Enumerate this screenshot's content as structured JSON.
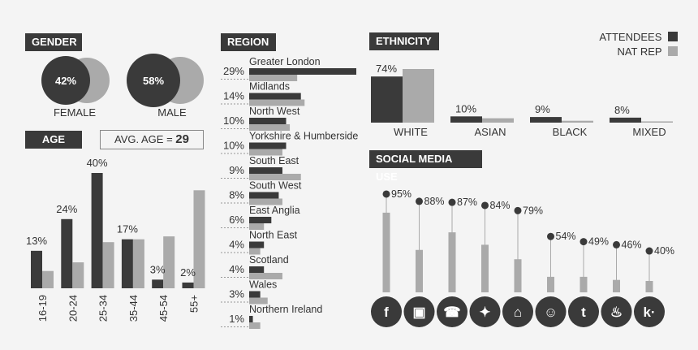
{
  "colors": {
    "attendees": "#3a3a3a",
    "natrep": "#aaaaaa",
    "background": "#f4f4f4"
  },
  "gender": {
    "title": "GENDER",
    "female": {
      "label": "FEMALE",
      "value": "42%"
    },
    "male": {
      "label": "MALE",
      "value": "58%"
    }
  },
  "age": {
    "title": "AGE",
    "avg_label": "AVG. AGE =",
    "avg_value": "29"
  },
  "region": {
    "title": "REGION"
  },
  "ethnicity": {
    "title": "ETHNICITY"
  },
  "social": {
    "title": "SOCIAL MEDIA USE"
  },
  "legend": {
    "attendees": "ATTENDEES",
    "natrep": "NAT REP"
  },
  "chart_data": [
    {
      "type": "bar",
      "id": "age",
      "categories": [
        "16-19",
        "20-24",
        "25-34",
        "35-44",
        "45-54",
        "55+"
      ],
      "labels": [
        "13%",
        "24%",
        "40%",
        "17%",
        "3%",
        "2%"
      ],
      "series": [
        {
          "name": "ATTENDEES",
          "values": [
            13,
            24,
            40,
            17,
            3,
            2
          ]
        },
        {
          "name": "NAT REP",
          "values": [
            6,
            9,
            16,
            17,
            18,
            34
          ]
        }
      ],
      "ylim": [
        0,
        40
      ]
    },
    {
      "type": "bar",
      "id": "region",
      "orientation": "horizontal",
      "categories": [
        "Greater London",
        "Midlands",
        "North West",
        "Yorkshire & Humberside",
        "South East",
        "South West",
        "East Anglia",
        "North East",
        "Scotland",
        "Wales",
        "Northern Ireland"
      ],
      "labels": [
        "29%",
        "14%",
        "10%",
        "10%",
        "9%",
        "8%",
        "6%",
        "4%",
        "4%",
        "3%",
        "1%"
      ],
      "series": [
        {
          "name": "ATTENDEES",
          "values": [
            29,
            14,
            10,
            10,
            9,
            8,
            6,
            4,
            4,
            3,
            1
          ]
        },
        {
          "name": "NAT REP",
          "values": [
            13,
            15,
            11,
            9,
            14,
            9,
            4,
            3,
            9,
            5,
            3
          ]
        }
      ],
      "xlim": [
        0,
        29
      ]
    },
    {
      "type": "bar",
      "id": "ethnicity",
      "categories": [
        "WHITE",
        "ASIAN",
        "BLACK",
        "MIXED"
      ],
      "labels": [
        "74%",
        "10%",
        "9%",
        "8%"
      ],
      "series": [
        {
          "name": "ATTENDEES",
          "values": [
            74,
            10,
            9,
            8
          ]
        },
        {
          "name": "NAT REP",
          "values": [
            86,
            7,
            3,
            2
          ]
        }
      ],
      "ylim": [
        0,
        86
      ]
    },
    {
      "type": "bar",
      "id": "social",
      "categories": [
        "facebook",
        "instagram",
        "whatsapp",
        "twitter",
        "snapchat",
        "reddit",
        "tumblr",
        "tinder",
        "kik"
      ],
      "labels": [
        "95%",
        "88%",
        "87%",
        "84%",
        "79%",
        "54%",
        "49%",
        "46%",
        "40%"
      ],
      "series": [
        {
          "name": "ATTENDEES",
          "values": [
            95,
            88,
            87,
            84,
            79,
            54,
            49,
            46,
            40
          ]
        },
        {
          "name": "NAT REP",
          "values": [
            77,
            41,
            58,
            46,
            32,
            15,
            15,
            12,
            11
          ]
        }
      ],
      "ylim": [
        0,
        100
      ],
      "icons": [
        "facebook-icon",
        "instagram-icon",
        "whatsapp-icon",
        "twitter-icon",
        "snapchat-icon",
        "reddit-icon",
        "tumblr-icon",
        "tinder-icon",
        "kik-icon"
      ]
    }
  ]
}
